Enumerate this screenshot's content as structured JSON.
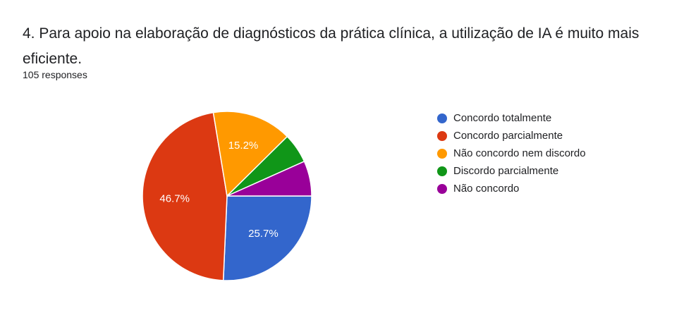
{
  "question": {
    "title": "4. Para apoio na elaboração de diagnósticos da prática clínica,  a utilização de IA é muito mais eficiente.",
    "responses": "105 responses"
  },
  "chart_data": {
    "type": "pie",
    "title": "4. Para apoio na elaboração de diagnósticos da prática clínica,  a utilização de IA é muito mais eficiente.",
    "legend_position": "right",
    "series": [
      {
        "name": "Concordo totalmente",
        "value": 25.7,
        "label": "25.7%",
        "color": "#3366cc"
      },
      {
        "name": "Concordo parcialmente",
        "value": 46.7,
        "label": "46.7%",
        "color": "#dc3912"
      },
      {
        "name": "Não concordo nem discordo",
        "value": 15.2,
        "label": "15.2%",
        "color": "#ff9900"
      },
      {
        "name": "Discordo parcialmente",
        "value": 5.7,
        "label": "",
        "color": "#109618"
      },
      {
        "name": "Não concordo",
        "value": 6.7,
        "label": "",
        "color": "#990099"
      }
    ]
  }
}
